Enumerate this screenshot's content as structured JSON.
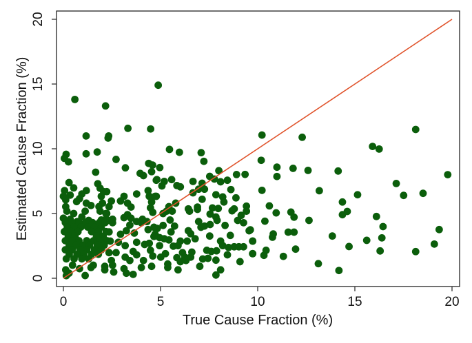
{
  "chart_data": {
    "type": "scatter",
    "title": "",
    "xlabel": "True Cause Fraction (%)",
    "ylabel": "Estimated Cause Fraction (%)",
    "xlim": [
      0,
      20
    ],
    "ylim": [
      0,
      20
    ],
    "xticks": [
      "0",
      "5",
      "10",
      "15",
      "20"
    ],
    "yticks": [
      "0",
      "5",
      "10",
      "15",
      "20"
    ],
    "grid": false,
    "point_color": "#0b5e0b",
    "reference_line": {
      "from": [
        0,
        0
      ],
      "to": [
        20,
        20
      ],
      "color": "#e0532b"
    },
    "points": [
      [
        10.22,
        11.06
      ],
      [
        12.29,
        10.89
      ],
      [
        18.13,
        11.49
      ],
      [
        15.91,
        10.18
      ],
      [
        16.25,
        9.98
      ],
      [
        10.18,
        9.11
      ],
      [
        10.99,
        8.58
      ],
      [
        11.82,
        8.49
      ],
      [
        12.59,
        8.33
      ],
      [
        14.14,
        8.28
      ],
      [
        10.99,
        7.86
      ],
      [
        19.78,
        8.0
      ],
      [
        17.13,
        7.32
      ],
      [
        10.22,
        6.79
      ],
      [
        13.17,
        6.76
      ],
      [
        15.14,
        6.45
      ],
      [
        17.51,
        6.4
      ],
      [
        18.51,
        6.56
      ],
      [
        14.36,
        5.89
      ],
      [
        10.6,
        5.59
      ],
      [
        10.95,
        5.05
      ],
      [
        11.71,
        5.11
      ],
      [
        11.87,
        4.72
      ],
      [
        14.36,
        4.91
      ],
      [
        14.61,
        5.16
      ],
      [
        10.37,
        4.41
      ],
      [
        12.64,
        4.47
      ],
      [
        16.11,
        4.77
      ],
      [
        16.45,
        3.99
      ],
      [
        9.62,
        3.74
      ],
      [
        10.8,
        3.42
      ],
      [
        10.76,
        3.17
      ],
      [
        11.57,
        3.56
      ],
      [
        11.87,
        3.56
      ],
      [
        13.84,
        3.26
      ],
      [
        19.34,
        3.76
      ],
      [
        9.74,
        2.87
      ],
      [
        15.61,
        2.93
      ],
      [
        16.39,
        3.12
      ],
      [
        19.09,
        2.64
      ],
      [
        18.13,
        2.06
      ],
      [
        16.3,
        2.11
      ],
      [
        14.7,
        2.45
      ],
      [
        9.74,
        1.9
      ],
      [
        10.32,
        1.77
      ],
      [
        10.43,
        2.16
      ],
      [
        11.32,
        1.69
      ],
      [
        11.95,
        2.25
      ],
      [
        13.12,
        1.13
      ],
      [
        14.18,
        0.6
      ],
      [
        0.59,
        13.81
      ],
      [
        2.17,
        13.31
      ],
      [
        4.88,
        14.91
      ],
      [
        3.32,
        11.58
      ],
      [
        4.49,
        11.53
      ],
      [
        1.17,
        10.99
      ],
      [
        2.33,
        10.99
      ],
      [
        2.3,
        10.83
      ],
      [
        0.14,
        9.57
      ],
      [
        0.05,
        9.26
      ],
      [
        0.26,
        8.99
      ],
      [
        1.17,
        9.61
      ],
      [
        1.74,
        9.75
      ],
      [
        2.71,
        9.18
      ],
      [
        3.19,
        8.53
      ],
      [
        5.46,
        9.95
      ],
      [
        5.97,
        9.73
      ],
      [
        7.09,
        9.7
      ],
      [
        7.23,
        9.03
      ],
      [
        4.39,
        8.87
      ],
      [
        4.59,
        8.74
      ],
      [
        4.96,
        8.55
      ],
      [
        8.0,
        8.31
      ],
      [
        7.53,
        7.87
      ],
      [
        8.91,
        8.01
      ],
      [
        9.35,
        8.02
      ],
      [
        4.81,
        7.62
      ],
      [
        5.19,
        7.48
      ],
      [
        5.57,
        7.62
      ],
      [
        5.07,
        7.13
      ],
      [
        5.84,
        7.16
      ],
      [
        6.02,
        7.06
      ],
      [
        6.67,
        7.48
      ],
      [
        7.14,
        7.34
      ],
      [
        7.77,
        7.66
      ],
      [
        8.09,
        7.45
      ],
      [
        8.44,
        7.57
      ],
      [
        6.96,
        6.88
      ],
      [
        7.26,
        6.88
      ],
      [
        6.67,
        6.6
      ],
      [
        8.62,
        6.85
      ],
      [
        7.85,
        6.45
      ],
      [
        8.2,
        6.28
      ],
      [
        8.88,
        6.21
      ],
      [
        4.78,
        6.33
      ],
      [
        7.14,
        6.1
      ],
      [
        8.26,
        5.89
      ],
      [
        5.78,
        5.8
      ],
      [
        5.43,
        5.53
      ],
      [
        9.42,
        5.57
      ],
      [
        6.43,
        5.36
      ],
      [
        6.9,
        5.5
      ],
      [
        7.67,
        5.43
      ],
      [
        7.97,
        5.39
      ],
      [
        8.79,
        5.36
      ],
      [
        5.31,
        5.18
      ],
      [
        5.6,
        5.18
      ],
      [
        5.13,
        5.0
      ],
      [
        9.42,
        5.18
      ],
      [
        6.49,
        5.18
      ],
      [
        6.9,
        5.32
      ],
      [
        7.55,
        4.96
      ],
      [
        8.68,
        5.21
      ],
      [
        9.15,
        4.86
      ],
      [
        5.49,
        4.5
      ],
      [
        7.85,
        4.73
      ],
      [
        7.91,
        4.47
      ],
      [
        6.96,
        4.38
      ],
      [
        7.55,
        4.15
      ],
      [
        9.27,
        4.29
      ],
      [
        8.97,
        4.47
      ],
      [
        5.13,
        4.08
      ],
      [
        5.72,
        4.03
      ],
      [
        7.08,
        3.94
      ],
      [
        7.26,
        4.03
      ],
      [
        8.32,
        4.08
      ],
      [
        4.83,
        3.85
      ],
      [
        5.54,
        3.58
      ],
      [
        6.43,
        3.67
      ],
      [
        6.55,
        3.44
      ],
      [
        9.56,
        3.67
      ],
      [
        4.72,
        3.4
      ],
      [
        7.53,
        3.26
      ],
      [
        8.59,
        3.31
      ],
      [
        4.95,
        3.14
      ],
      [
        5.19,
        3.05
      ],
      [
        5.43,
        2.96
      ],
      [
        6.78,
        3.05
      ],
      [
        6.37,
        2.87
      ],
      [
        6.02,
        2.87
      ],
      [
        9.74,
        2.87
      ],
      [
        8.09,
        2.87
      ],
      [
        4.95,
        2.52
      ],
      [
        5.66,
        2.48
      ],
      [
        5.9,
        2.52
      ],
      [
        8.2,
        2.52
      ],
      [
        8.5,
        2.38
      ],
      [
        8.79,
        2.43
      ],
      [
        9.03,
        2.43
      ],
      [
        9.27,
        2.43
      ],
      [
        7.38,
        2.16
      ],
      [
        7.61,
        2.07
      ],
      [
        7.88,
        2.12
      ],
      [
        5.25,
        1.9
      ],
      [
        6.13,
        1.98
      ],
      [
        6.61,
        2.02
      ],
      [
        9.74,
        1.9
      ],
      [
        8.44,
        1.81
      ],
      [
        5.01,
        1.63
      ],
      [
        5.84,
        1.59
      ],
      [
        6.25,
        1.63
      ],
      [
        6.55,
        1.63
      ],
      [
        7.17,
        1.49
      ],
      [
        7.44,
        1.54
      ],
      [
        7.85,
        1.4
      ],
      [
        5.37,
        1.1
      ],
      [
        6.02,
        1.28
      ],
      [
        6.31,
        1.37
      ],
      [
        9.09,
        1.28
      ],
      [
        7.02,
        0.92
      ],
      [
        5.37,
        0.83
      ],
      [
        5.9,
        0.65
      ],
      [
        8.09,
        0.65
      ],
      [
        7.85,
        0.25
      ],
      [
        1.66,
        8.19
      ],
      [
        0.29,
        7.39
      ],
      [
        0.53,
        6.98
      ],
      [
        0.06,
        6.77
      ],
      [
        0.35,
        6.42
      ],
      [
        0.0,
        6.33
      ],
      [
        0.12,
        6.06
      ],
      [
        1.18,
        6.77
      ],
      [
        0.95,
        6.51
      ],
      [
        0.83,
        6.15
      ],
      [
        0.68,
        5.92
      ],
      [
        1.77,
        7.3
      ],
      [
        1.89,
        6.95
      ],
      [
        2.07,
        6.69
      ],
      [
        1.95,
        6.33
      ],
      [
        1.18,
        5.8
      ],
      [
        1.42,
        5.62
      ],
      [
        2.01,
        5.8
      ],
      [
        1.83,
        5.53
      ],
      [
        1.89,
        5.18
      ],
      [
        2.19,
        5.0
      ],
      [
        0.12,
        5.53
      ],
      [
        0.18,
        5.18
      ],
      [
        0.53,
        5.0
      ],
      [
        1.12,
        5.18
      ],
      [
        0.95,
        4.73
      ],
      [
        0.35,
        4.56
      ],
      [
        0.0,
        4.64
      ],
      [
        1.3,
        4.47
      ],
      [
        1.95,
        4.5
      ],
      [
        2.19,
        4.56
      ],
      [
        0.71,
        4.38
      ],
      [
        3.95,
        8.1
      ],
      [
        4.12,
        7.93
      ],
      [
        4.54,
        8.23
      ],
      [
        4.78,
        7.57
      ],
      [
        3.77,
        6.51
      ],
      [
        4.36,
        6.77
      ],
      [
        4.42,
        6.33
      ],
      [
        4.72,
        6.33
      ],
      [
        4.54,
        5.89
      ],
      [
        4.48,
        5.44
      ],
      [
        4.6,
        5.09
      ],
      [
        2.23,
        6.69
      ],
      [
        2.47,
        5.97
      ],
      [
        2.35,
        5.53
      ],
      [
        3.12,
        6.33
      ],
      [
        2.94,
        5.97
      ],
      [
        3.3,
        5.8
      ],
      [
        3.48,
        5.5
      ],
      [
        2.23,
        5.0
      ],
      [
        2.53,
        4.56
      ],
      [
        2.29,
        4.47
      ],
      [
        3.3,
        4.91
      ],
      [
        3.12,
        4.68
      ],
      [
        3.48,
        4.64
      ],
      [
        4.07,
        4.56
      ],
      [
        3.77,
        4.38
      ],
      [
        2.53,
        4.29
      ],
      [
        3.42,
        4.11
      ],
      [
        4.01,
        4.29
      ],
      [
        4.3,
        4.38
      ],
      [
        2.35,
        3.58
      ],
      [
        2.94,
        3.4
      ],
      [
        3.24,
        3.67
      ],
      [
        3.65,
        3.49
      ],
      [
        4.36,
        3.76
      ],
      [
        4.66,
        3.94
      ],
      [
        4.66,
        3.23
      ],
      [
        2.41,
        2.87
      ],
      [
        2.83,
        2.78
      ],
      [
        3.18,
        2.52
      ],
      [
        3.77,
        2.78
      ],
      [
        4.18,
        2.61
      ],
      [
        4.42,
        2.7
      ],
      [
        4.48,
        2.16
      ],
      [
        4.6,
        1.72
      ],
      [
        2.71,
        1.98
      ],
      [
        2.35,
        1.98
      ],
      [
        3.59,
        2.07
      ],
      [
        3.77,
        1.81
      ],
      [
        3.18,
        1.63
      ],
      [
        2.47,
        1.37
      ],
      [
        3.42,
        1.37
      ],
      [
        4.12,
        1.37
      ],
      [
        4.01,
        0.83
      ],
      [
        4.54,
        0.92
      ],
      [
        2.53,
        1.01
      ],
      [
        2.59,
        0.48
      ],
      [
        3.12,
        0.74
      ],
      [
        3.24,
        0.39
      ],
      [
        3.59,
        0.3
      ],
      [
        0.12,
        0.65
      ],
      [
        0.29,
        0.39
      ],
      [
        0.47,
        1.01
      ],
      [
        0.83,
        0.74
      ],
      [
        1.12,
        0.21
      ],
      [
        1.42,
        0.83
      ],
      [
        1.54,
        1.01
      ],
      [
        2.13,
        0.92
      ],
      [
        2.13,
        0.65
      ],
      [
        0.15,
        0.2
      ],
      [
        0.1,
        4.3
      ],
      [
        0.45,
        4.3
      ],
      [
        0.8,
        4.3
      ],
      [
        1.15,
        4.3
      ],
      [
        1.5,
        4.3
      ],
      [
        1.85,
        4.3
      ],
      [
        2.15,
        4.3
      ],
      [
        0.2,
        3.95
      ],
      [
        0.55,
        3.95
      ],
      [
        0.9,
        3.95
      ],
      [
        1.25,
        3.95
      ],
      [
        1.6,
        3.95
      ],
      [
        1.95,
        3.95
      ],
      [
        0.05,
        3.6
      ],
      [
        0.4,
        3.6
      ],
      [
        0.75,
        3.6
      ],
      [
        1.45,
        3.6
      ],
      [
        1.8,
        3.6
      ],
      [
        2.2,
        3.6
      ],
      [
        0.25,
        3.25
      ],
      [
        0.6,
        3.25
      ],
      [
        1.7,
        3.25
      ],
      [
        2.05,
        3.25
      ],
      [
        0.1,
        2.9
      ],
      [
        0.45,
        2.9
      ],
      [
        0.8,
        2.9
      ],
      [
        1.2,
        2.9
      ],
      [
        1.55,
        2.9
      ],
      [
        1.9,
        2.9
      ],
      [
        2.25,
        2.9
      ],
      [
        0.3,
        2.55
      ],
      [
        0.65,
        2.55
      ],
      [
        1.0,
        2.55
      ],
      [
        1.35,
        2.55
      ],
      [
        1.75,
        2.55
      ],
      [
        2.1,
        2.55
      ],
      [
        0.1,
        2.2
      ],
      [
        0.45,
        2.2
      ],
      [
        0.85,
        2.2
      ],
      [
        1.2,
        2.2
      ],
      [
        1.6,
        2.2
      ],
      [
        1.95,
        2.2
      ],
      [
        0.3,
        1.85
      ],
      [
        0.7,
        1.85
      ],
      [
        1.05,
        1.85
      ],
      [
        1.45,
        1.85
      ],
      [
        1.8,
        1.85
      ],
      [
        0.15,
        1.5
      ],
      [
        0.55,
        1.5
      ],
      [
        0.95,
        1.5
      ],
      [
        1.3,
        1.5
      ]
    ]
  }
}
